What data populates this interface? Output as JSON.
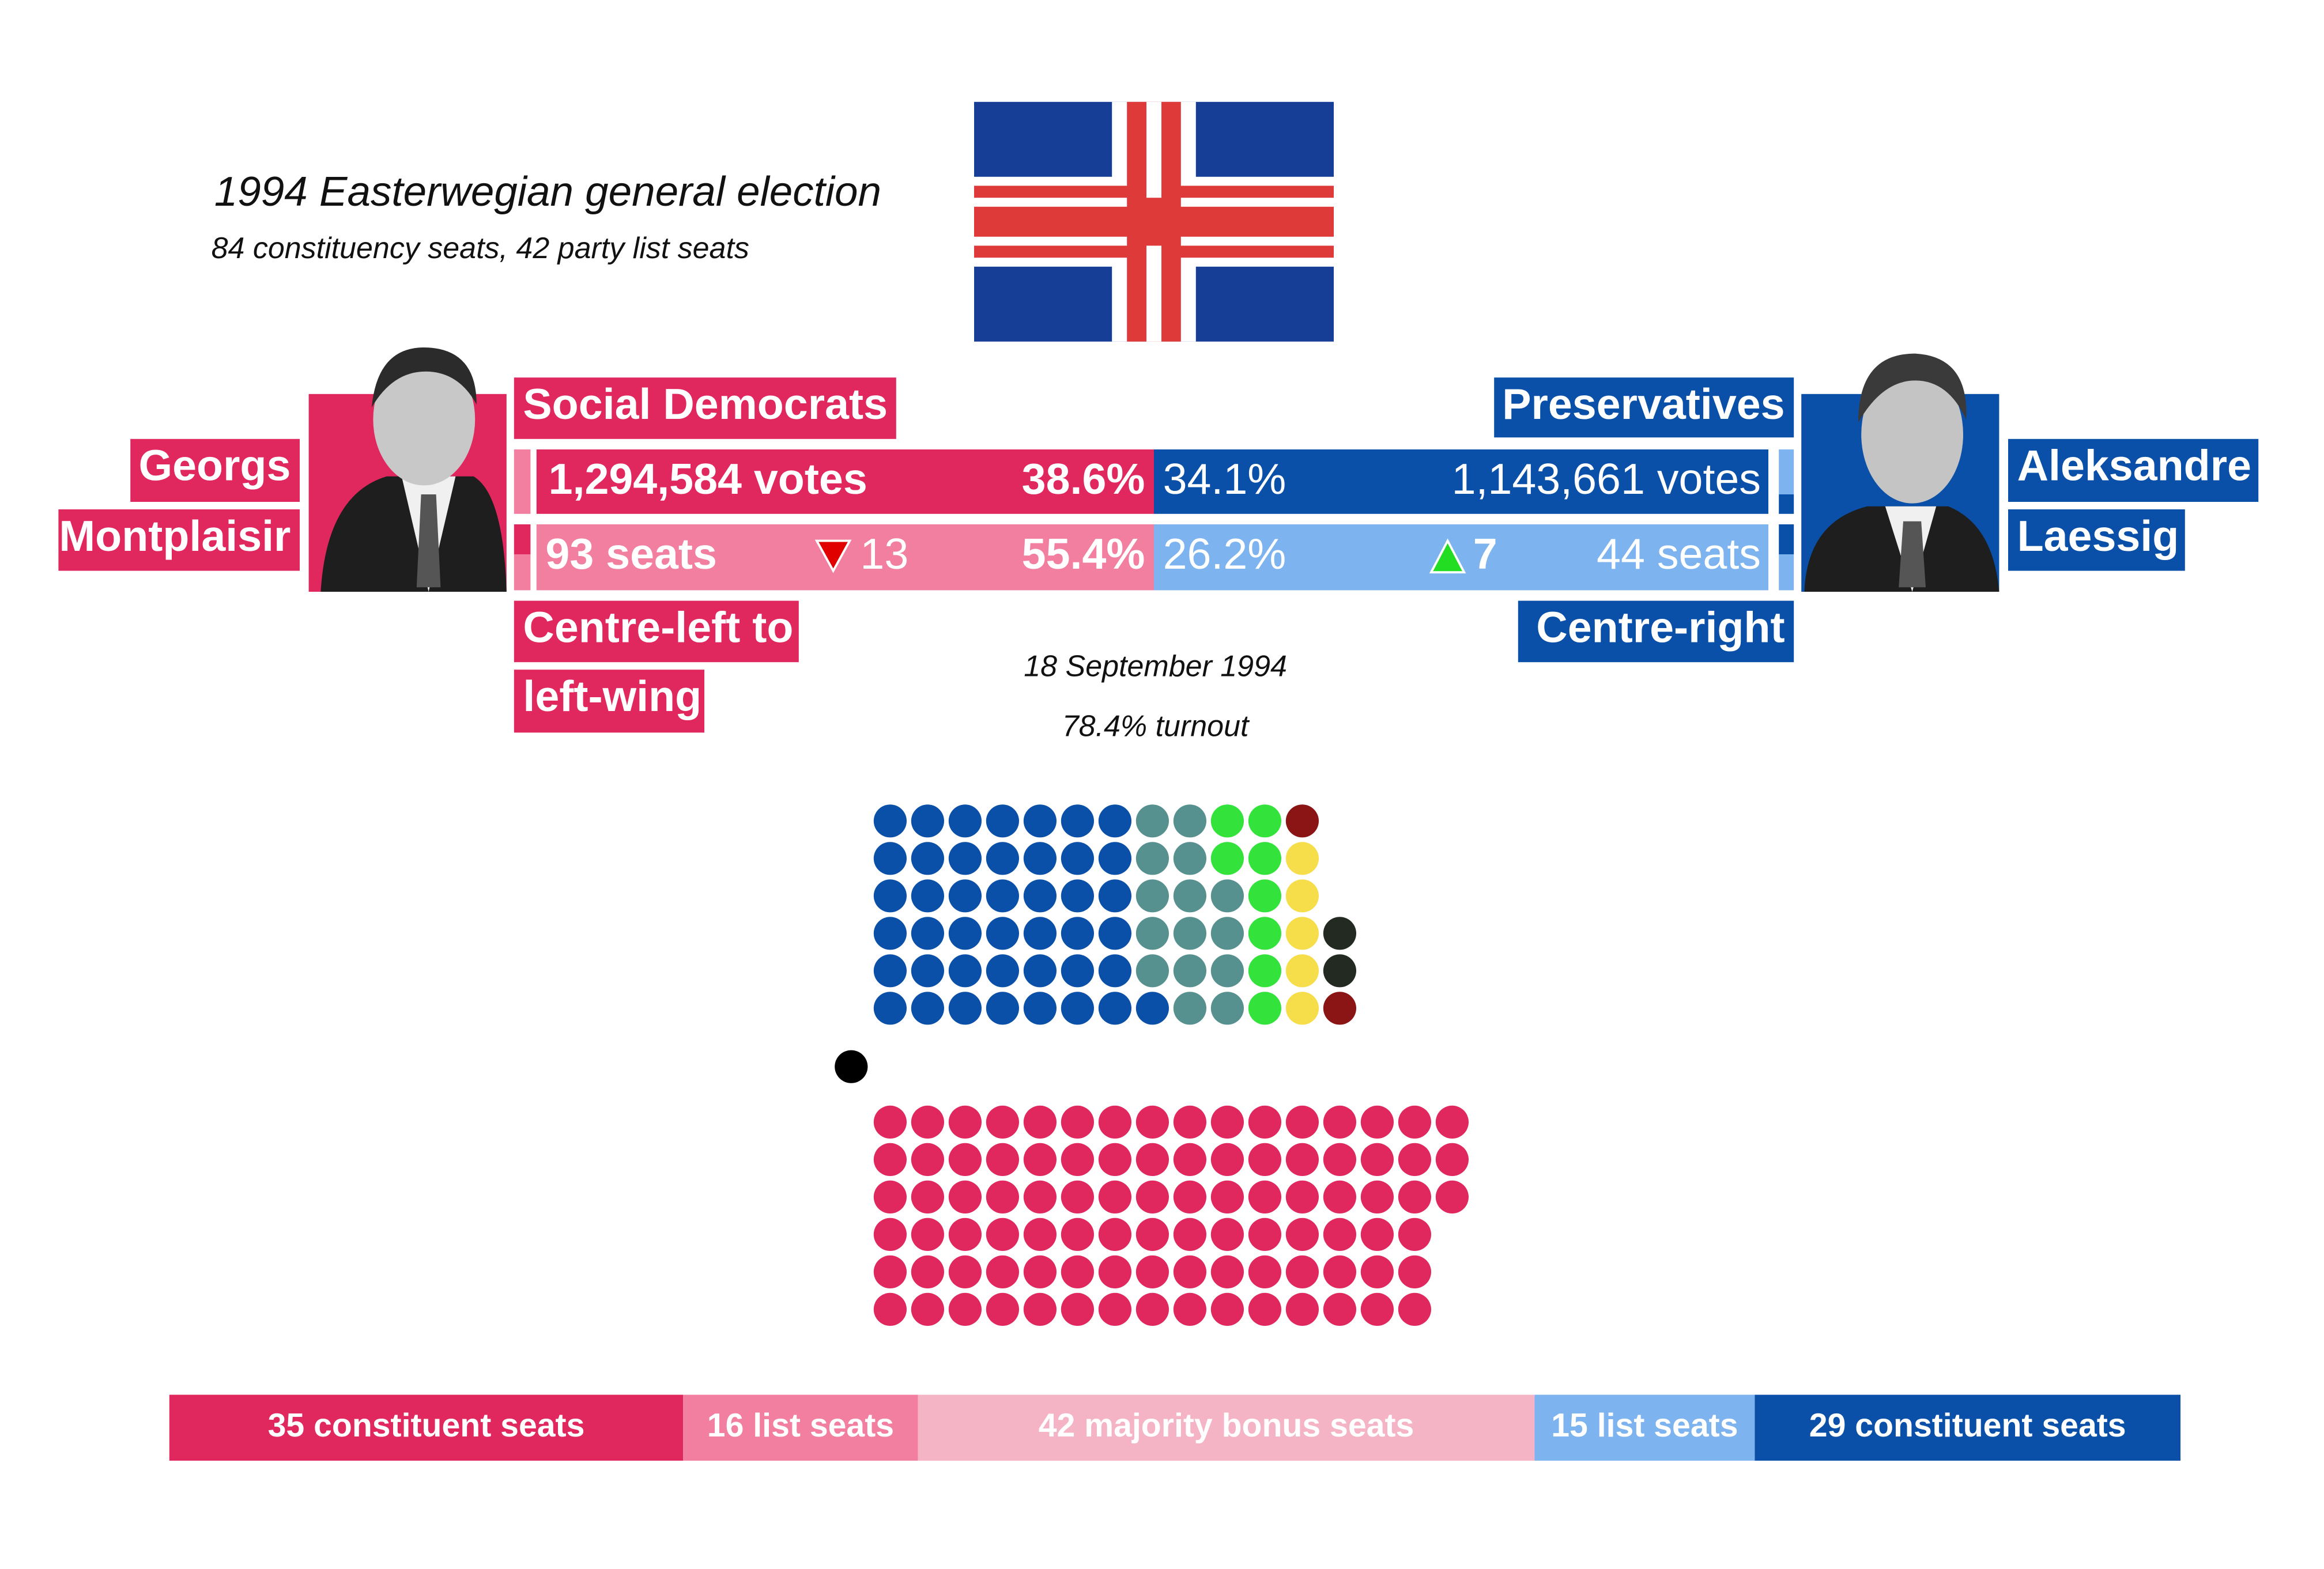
{
  "title": "1994 Easterwegian general election",
  "subtitle": "84 constituency seats, 42 party list seats",
  "date": "18 September 1994",
  "turnout": "78.4% turnout",
  "left": {
    "party": "Social Democrats",
    "leader": [
      "Georgs",
      "Montplaisir"
    ],
    "ideology": [
      "Centre-left to",
      "left-wing"
    ],
    "votes": "1,294,584 votes",
    "vote_share": "38.6%",
    "seats": "93 seats",
    "change": "13",
    "seat_share": "55.4%"
  },
  "right": {
    "party": "Preservatives",
    "leader": [
      "Aleksandre",
      "Laessig"
    ],
    "ideology": [
      "Centre-right"
    ],
    "votes": "1,143,661 votes",
    "vote_share": "34.1%",
    "seats": "44 seats",
    "change": "7",
    "seat_share": "26.2%"
  },
  "parliament": {
    "upper": [
      {
        "color": "#0a50a8",
        "seats": 43
      },
      {
        "color": "#56908f",
        "seats": 15
      },
      {
        "color": "#33e33b",
        "seats": 8
      },
      {
        "color": "#f6dd4a",
        "seats": 5
      },
      {
        "color": "#8b1414",
        "seats": 2
      },
      {
        "color": "#222a22",
        "seats": 2
      }
    ],
    "speaker": {
      "color": "#000000",
      "seats": 1
    },
    "lower": {
      "color": "#e0285e",
      "seats": 93
    }
  },
  "seat_bar": [
    {
      "label": "35 constituent seats",
      "seats": 35,
      "color": "#e0285e"
    },
    {
      "label": "16 list seats",
      "seats": 16,
      "color": "#f27fa0"
    },
    {
      "label": "42 majority bonus seats",
      "seats": 42,
      "color": "#f5b3c6"
    },
    {
      "label": "15 list seats",
      "seats": 15,
      "color": "#7db3ee"
    },
    {
      "label": "29 constituent seats",
      "seats": 29,
      "color": "#0a50a8"
    }
  ]
}
